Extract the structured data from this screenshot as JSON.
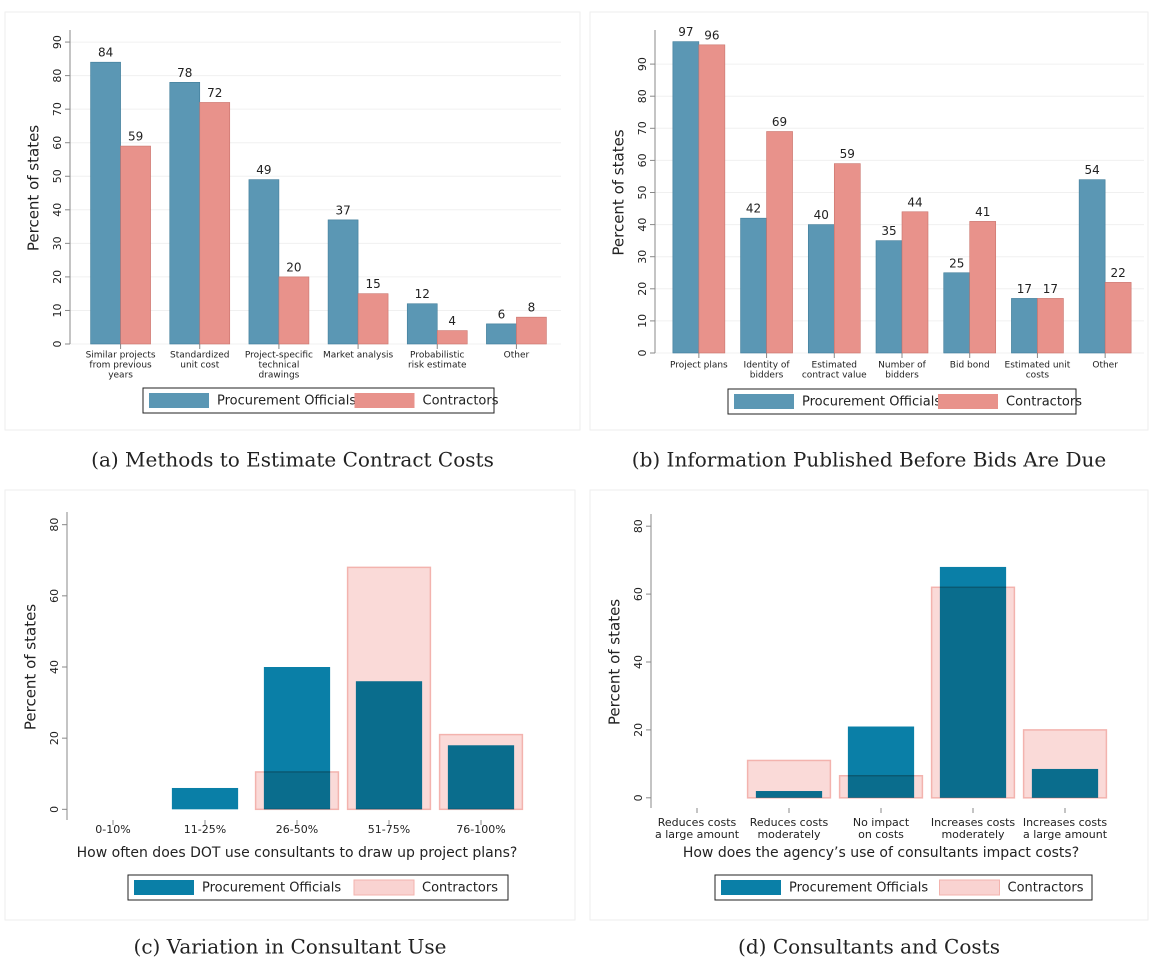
{
  "chart_data": [
    {
      "type": "bar",
      "barmode": "group",
      "caption": "(a) Methods to Estimate Contract Costs",
      "ylabel": "Percent of states",
      "categories": [
        [
          "Similar projects",
          "from previous",
          "years"
        ],
        [
          "Standardized",
          "unit cost"
        ],
        [
          "Project-specific",
          "technical",
          "drawings"
        ],
        [
          "Market analysis"
        ],
        [
          "Probabilistic",
          "risk estimate"
        ],
        [
          "Other"
        ]
      ],
      "series": [
        {
          "name": "Procurement Officials",
          "color": "#5b97b4",
          "values": [
            84,
            78,
            49,
            37,
            12,
            6
          ]
        },
        {
          "name": "Contractors",
          "color": "#e8928b",
          "values": [
            59,
            72,
            20,
            15,
            4,
            8
          ]
        }
      ],
      "ylim": [
        0,
        93
      ],
      "yticks": [
        0,
        10,
        20,
        30,
        40,
        50,
        60,
        70,
        80,
        90
      ],
      "grid": true,
      "show_values": true
    },
    {
      "type": "bar",
      "barmode": "group",
      "caption": "(b) Information Published Before Bids Are Due",
      "ylabel": "Percent of states",
      "categories": [
        [
          "Project plans"
        ],
        [
          "Identity of",
          "bidders"
        ],
        [
          "Estimated",
          "contract value"
        ],
        [
          "Number of",
          "bidders"
        ],
        [
          "Bid bond"
        ],
        [
          "Estimated unit",
          "costs"
        ],
        [
          "Other"
        ]
      ],
      "series": [
        {
          "name": "Procurement Officials",
          "color": "#5b97b4",
          "values": [
            97,
            42,
            40,
            35,
            25,
            17,
            54
          ]
        },
        {
          "name": "Contractors",
          "color": "#e8928b",
          "values": [
            96,
            69,
            59,
            44,
            41,
            17,
            22
          ]
        }
      ],
      "ylim": [
        0,
        100
      ],
      "yticks": [
        0,
        10,
        20,
        30,
        40,
        50,
        60,
        70,
        80,
        90
      ],
      "grid": true,
      "show_values": true
    },
    {
      "type": "bar",
      "barmode": "overlay",
      "caption": "(c) Variation in Consultant Use",
      "ylabel": "Percent of states",
      "xlabel": "How often does DOT use consultants to draw up project plans?",
      "categories": [
        [
          "0-10%"
        ],
        [
          "11-25%"
        ],
        [
          "26-50%"
        ],
        [
          "51-75%"
        ],
        [
          "76-100%"
        ]
      ],
      "series": [
        {
          "name": "Procurement Officials",
          "color": "#0a7fa7",
          "values": [
            0,
            6,
            40,
            36,
            18
          ]
        },
        {
          "name": "Contractors",
          "color": "#f9d3d1",
          "values": [
            0,
            0,
            10.5,
            68,
            21
          ]
        }
      ],
      "ylim": [
        -3,
        83
      ],
      "yticks": [
        0,
        20,
        40,
        60,
        80
      ],
      "grid": false,
      "show_values": false
    },
    {
      "type": "bar",
      "barmode": "overlay",
      "caption": "(d) Consultants and Costs",
      "ylabel": "Percent of states",
      "xlabel": "How does the agency’s use of consultants impact costs?",
      "categories": [
        [
          "Reduces costs",
          "a large amount"
        ],
        [
          "Reduces costs",
          "moderately"
        ],
        [
          "No impact",
          "on costs"
        ],
        [
          "Increases costs",
          "moderately"
        ],
        [
          "Increases costs",
          "a large amount"
        ]
      ],
      "series": [
        {
          "name": "Procurement Officials",
          "color": "#0a7fa7",
          "values": [
            0,
            2,
            21,
            68,
            8.5
          ]
        },
        {
          "name": "Contractors",
          "color": "#f9d3d1",
          "values": [
            0,
            11,
            6.5,
            62,
            20
          ]
        }
      ],
      "ylim": [
        -3,
        83
      ],
      "yticks": [
        0,
        20,
        40,
        60,
        80
      ],
      "grid": false,
      "show_values": false
    }
  ]
}
